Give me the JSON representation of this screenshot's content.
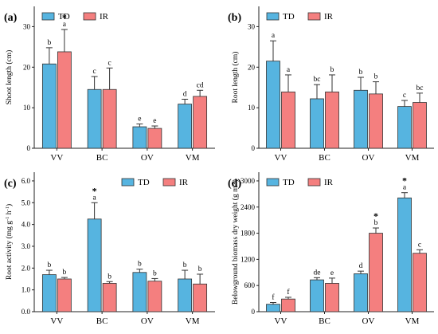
{
  "colors": {
    "TD": "#56b4e0",
    "IR": "#f47f7f"
  },
  "chart_data": [
    {
      "panel": "(a)",
      "type": "bar",
      "ylabel": "Shoot length (cm)",
      "ylim": [
        0,
        35
      ],
      "yticks": [
        0,
        10,
        20,
        30
      ],
      "categories": [
        "VV",
        "BC",
        "OV",
        "VM"
      ],
      "series": [
        {
          "name": "TD",
          "values": [
            20.8,
            14.5,
            5.3,
            10.9
          ],
          "errors": [
            4.0,
            3.2,
            0.7,
            1.2
          ],
          "letters": [
            "b",
            "c",
            "e",
            "d"
          ],
          "stars": [
            false,
            false,
            false,
            false
          ]
        },
        {
          "name": "IR",
          "values": [
            23.8,
            14.5,
            4.9,
            12.8
          ],
          "errors": [
            5.5,
            5.3,
            0.6,
            1.5
          ],
          "letters": [
            "a",
            "c",
            "e",
            "cd"
          ],
          "stars": [
            true,
            false,
            false,
            false
          ]
        }
      ],
      "legend": "top-left"
    },
    {
      "panel": "(b)",
      "type": "bar",
      "ylabel": "Root length (cm)",
      "ylim": [
        0,
        35
      ],
      "yticks": [
        0,
        10,
        20,
        30
      ],
      "categories": [
        "VV",
        "BC",
        "OV",
        "VM"
      ],
      "series": [
        {
          "name": "TD",
          "values": [
            21.5,
            12.2,
            14.3,
            10.3
          ],
          "errors": [
            5.0,
            3.5,
            3.2,
            1.5
          ],
          "letters": [
            "a",
            "bc",
            "b",
            "c"
          ],
          "stars": [
            false,
            false,
            false,
            false
          ]
        },
        {
          "name": "IR",
          "values": [
            13.9,
            13.9,
            13.4,
            11.3
          ],
          "errors": [
            4.2,
            4.2,
            3.0,
            2.3
          ],
          "letters": [
            "a",
            "b",
            "b",
            "bc"
          ],
          "stars": [
            false,
            false,
            false,
            false
          ]
        }
      ],
      "legend": "top-left"
    },
    {
      "panel": "(c)",
      "type": "bar",
      "ylabel_main": "Root activity (mg g",
      "ylabel_sup1": "-1",
      "ylabel_mid": " h",
      "ylabel_sup2": "-1",
      "ylabel_end": ")",
      "ylim": [
        0,
        6.4
      ],
      "yticks": [
        "0.0",
        "1.0",
        "2.0",
        "3.0",
        "4.0",
        "5.0",
        "6.0"
      ],
      "categories": [
        "VV",
        "BC",
        "OV",
        "VM"
      ],
      "series": [
        {
          "name": "TD",
          "values": [
            1.7,
            4.25,
            1.8,
            1.5
          ],
          "errors": [
            0.2,
            0.75,
            0.15,
            0.4
          ],
          "letters": [
            "b",
            "a",
            "b",
            "b"
          ],
          "stars": [
            false,
            true,
            false,
            false
          ]
        },
        {
          "name": "IR",
          "values": [
            1.5,
            1.3,
            1.4,
            1.27
          ],
          "errors": [
            0.07,
            0.08,
            0.12,
            0.45
          ],
          "letters": [
            "b",
            "b",
            "b",
            "b"
          ],
          "stars": [
            false,
            false,
            false,
            false
          ]
        }
      ],
      "legend": "top-right"
    },
    {
      "panel": "(d)",
      "type": "bar",
      "ylabel_main": "Belowground biomass dry weight (g m",
      "ylabel_sup1": "-2",
      "ylabel_end": ")",
      "ylim": [
        0,
        3200
      ],
      "yticks": [
        0,
        600,
        1200,
        1800,
        2400,
        3000
      ],
      "categories": [
        "VV",
        "BC",
        "OV",
        "VM"
      ],
      "series": [
        {
          "name": "TD",
          "values": [
            170,
            730,
            870,
            2610
          ],
          "errors": [
            40,
            50,
            60,
            120
          ],
          "letters": [
            "f",
            "de",
            "d",
            "a"
          ],
          "stars": [
            false,
            false,
            false,
            true
          ]
        },
        {
          "name": "IR",
          "values": [
            290,
            650,
            1800,
            1340
          ],
          "errors": [
            40,
            120,
            120,
            80
          ],
          "letters": [
            "f",
            "e",
            "b",
            "c"
          ],
          "stars": [
            false,
            false,
            true,
            false
          ]
        }
      ],
      "legend": "top-left"
    }
  ]
}
